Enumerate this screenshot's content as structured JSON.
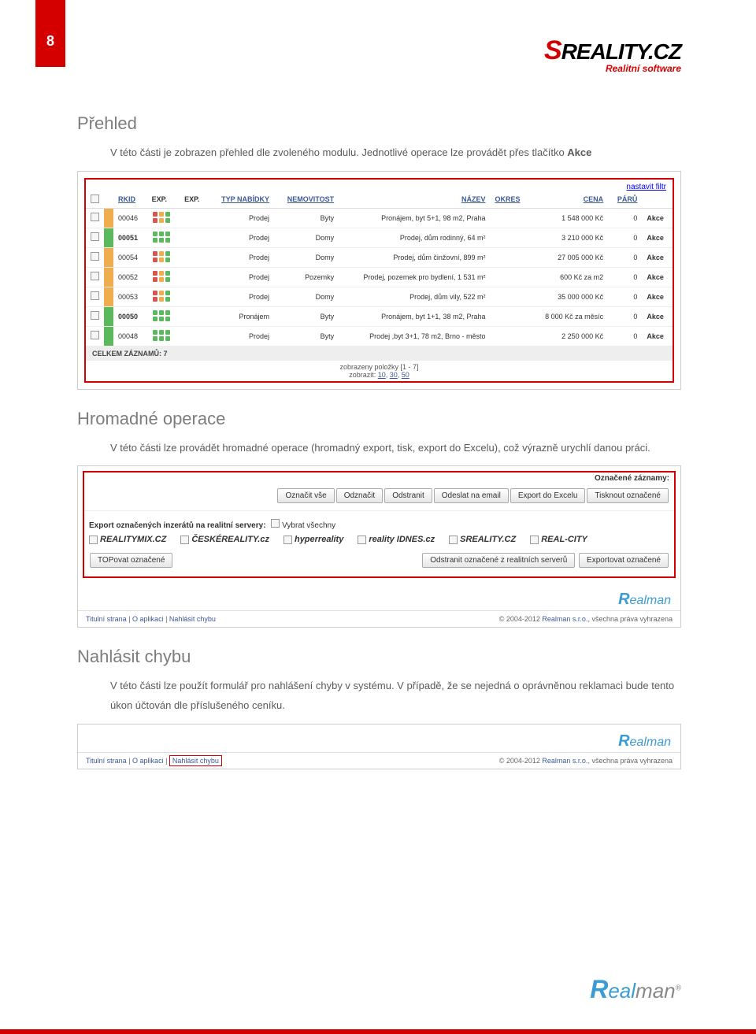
{
  "page_number": "8",
  "logo": {
    "text": "REALITY.CZ",
    "s": "S",
    "subtitle": "Realitní software"
  },
  "section1": {
    "title": "Přehled",
    "body_a": "V této části je zobrazen přehled dle zvoleného modulu. Jednotlivé operace lze provádět přes tlačítko ",
    "body_bold": "Akce"
  },
  "table": {
    "filter_link": "nastavit filtr",
    "headers": {
      "rkid": "RKID",
      "exp1": "EXP.",
      "exp2": "EXP.",
      "typ": "TYP NABÍDKY",
      "nemovitost": "NEMOVITOST",
      "nazev": "NÁZEV",
      "okres": "OKRES",
      "cena": "CENA",
      "paru": "PÁRŮ"
    },
    "rows": [
      {
        "stripe": "o",
        "rkid": "00046",
        "rkid_red": false,
        "typ": "Prodej",
        "nem": "Byty",
        "nazev": "Pronájem, byt 5+1, 98 m2, Praha",
        "cena": "1 548 000 Kč",
        "paru": "0",
        "akce": "Akce"
      },
      {
        "stripe": "g",
        "rkid": "00051",
        "rkid_red": true,
        "typ": "Prodej",
        "nem": "Domy",
        "nazev": "Prodej, dům rodinný, 64 m²",
        "cena": "3 210 000 Kč",
        "paru": "0",
        "akce": "Akce"
      },
      {
        "stripe": "o",
        "rkid": "00054",
        "rkid_red": false,
        "typ": "Prodej",
        "nem": "Domy",
        "nazev": "Prodej, dům činžovní, 899 m²",
        "cena": "27 005 000 Kč",
        "paru": "0",
        "akce": "Akce"
      },
      {
        "stripe": "o",
        "rkid": "00052",
        "rkid_red": false,
        "typ": "Prodej",
        "nem": "Pozemky",
        "nazev": "Prodej, pozemek pro bydlení, 1 531 m²",
        "cena": "600 Kč za m2",
        "paru": "0",
        "akce": "Akce"
      },
      {
        "stripe": "o",
        "rkid": "00053",
        "rkid_red": false,
        "typ": "Prodej",
        "nem": "Domy",
        "nazev": "Prodej, dům vily, 522 m²",
        "cena": "35 000 000 Kč",
        "paru": "0",
        "akce": "Akce"
      },
      {
        "stripe": "g",
        "rkid": "00050",
        "rkid_red": true,
        "typ": "Pronájem",
        "nem": "Byty",
        "nazev": "Pronájem, byt 1+1, 38 m2, Praha",
        "cena": "8 000 Kč za měsíc",
        "paru": "0",
        "akce": "Akce"
      },
      {
        "stripe": "g",
        "rkid": "00048",
        "rkid_red": false,
        "typ": "Prodej",
        "nem": "Byty",
        "nazev": "Prodej ,byt 3+1, 78 m2, Brno - město",
        "cena": "2 250 000 Kč",
        "paru": "0",
        "akce": "Akce"
      }
    ],
    "footer_total": "CELKEM ZÁZNAMŮ: 7",
    "paging1": "zobrazeny položky [1 - 7]",
    "paging2_pre": "zobrazit: ",
    "paging2_10": "10",
    "paging2_30": "30",
    "paging2_50": "50"
  },
  "section2": {
    "title": "Hromadné operace",
    "body": "V této části lze provádět hromadné operace (hromadný export, tisk, export do Excelu), což výrazně urychlí danou práci."
  },
  "batch": {
    "header": "Označené záznamy:",
    "buttons": [
      "Označit vše",
      "Odznačit",
      "Odstranit",
      "Odeslat na email",
      "Export do Excelu",
      "Tisknout označené"
    ],
    "export_label": "Export označených inzerátů na realitní servery:",
    "select_all": "Vybrat všechny",
    "servers": [
      "REALITYMIX.CZ",
      "ČESKÉREALITY.cz",
      "hyperreality",
      "reality IDNES.cz",
      "SREALITY.CZ",
      "REAL-CITY"
    ],
    "btn_top": "TOPovat označené",
    "btn_remove": "Odstranit označené z realitních serverů",
    "btn_export": "Exportovat označené",
    "realman": "ealman",
    "realman_r": "R",
    "footer_links": {
      "titulni": "Titulní strana",
      "o_aplikaci": "O aplikaci",
      "nahlasit": "Nahlásit chybu"
    },
    "copyright_a": "© 2004-2012 ",
    "copyright_link": "Realman s.r.o.",
    "copyright_b": ", všechna práva vyhrazena"
  },
  "section3": {
    "title": "Nahlásit chybu",
    "body": "V této části lze použít formulář pro nahlášení chyby v systému. V případě, že se nejedná o oprávněnou reklamaci bude tento úkon účtován dle příslušeného ceníku."
  },
  "footer_logo": {
    "r": "R",
    "eal": "eal",
    "man": "man"
  }
}
